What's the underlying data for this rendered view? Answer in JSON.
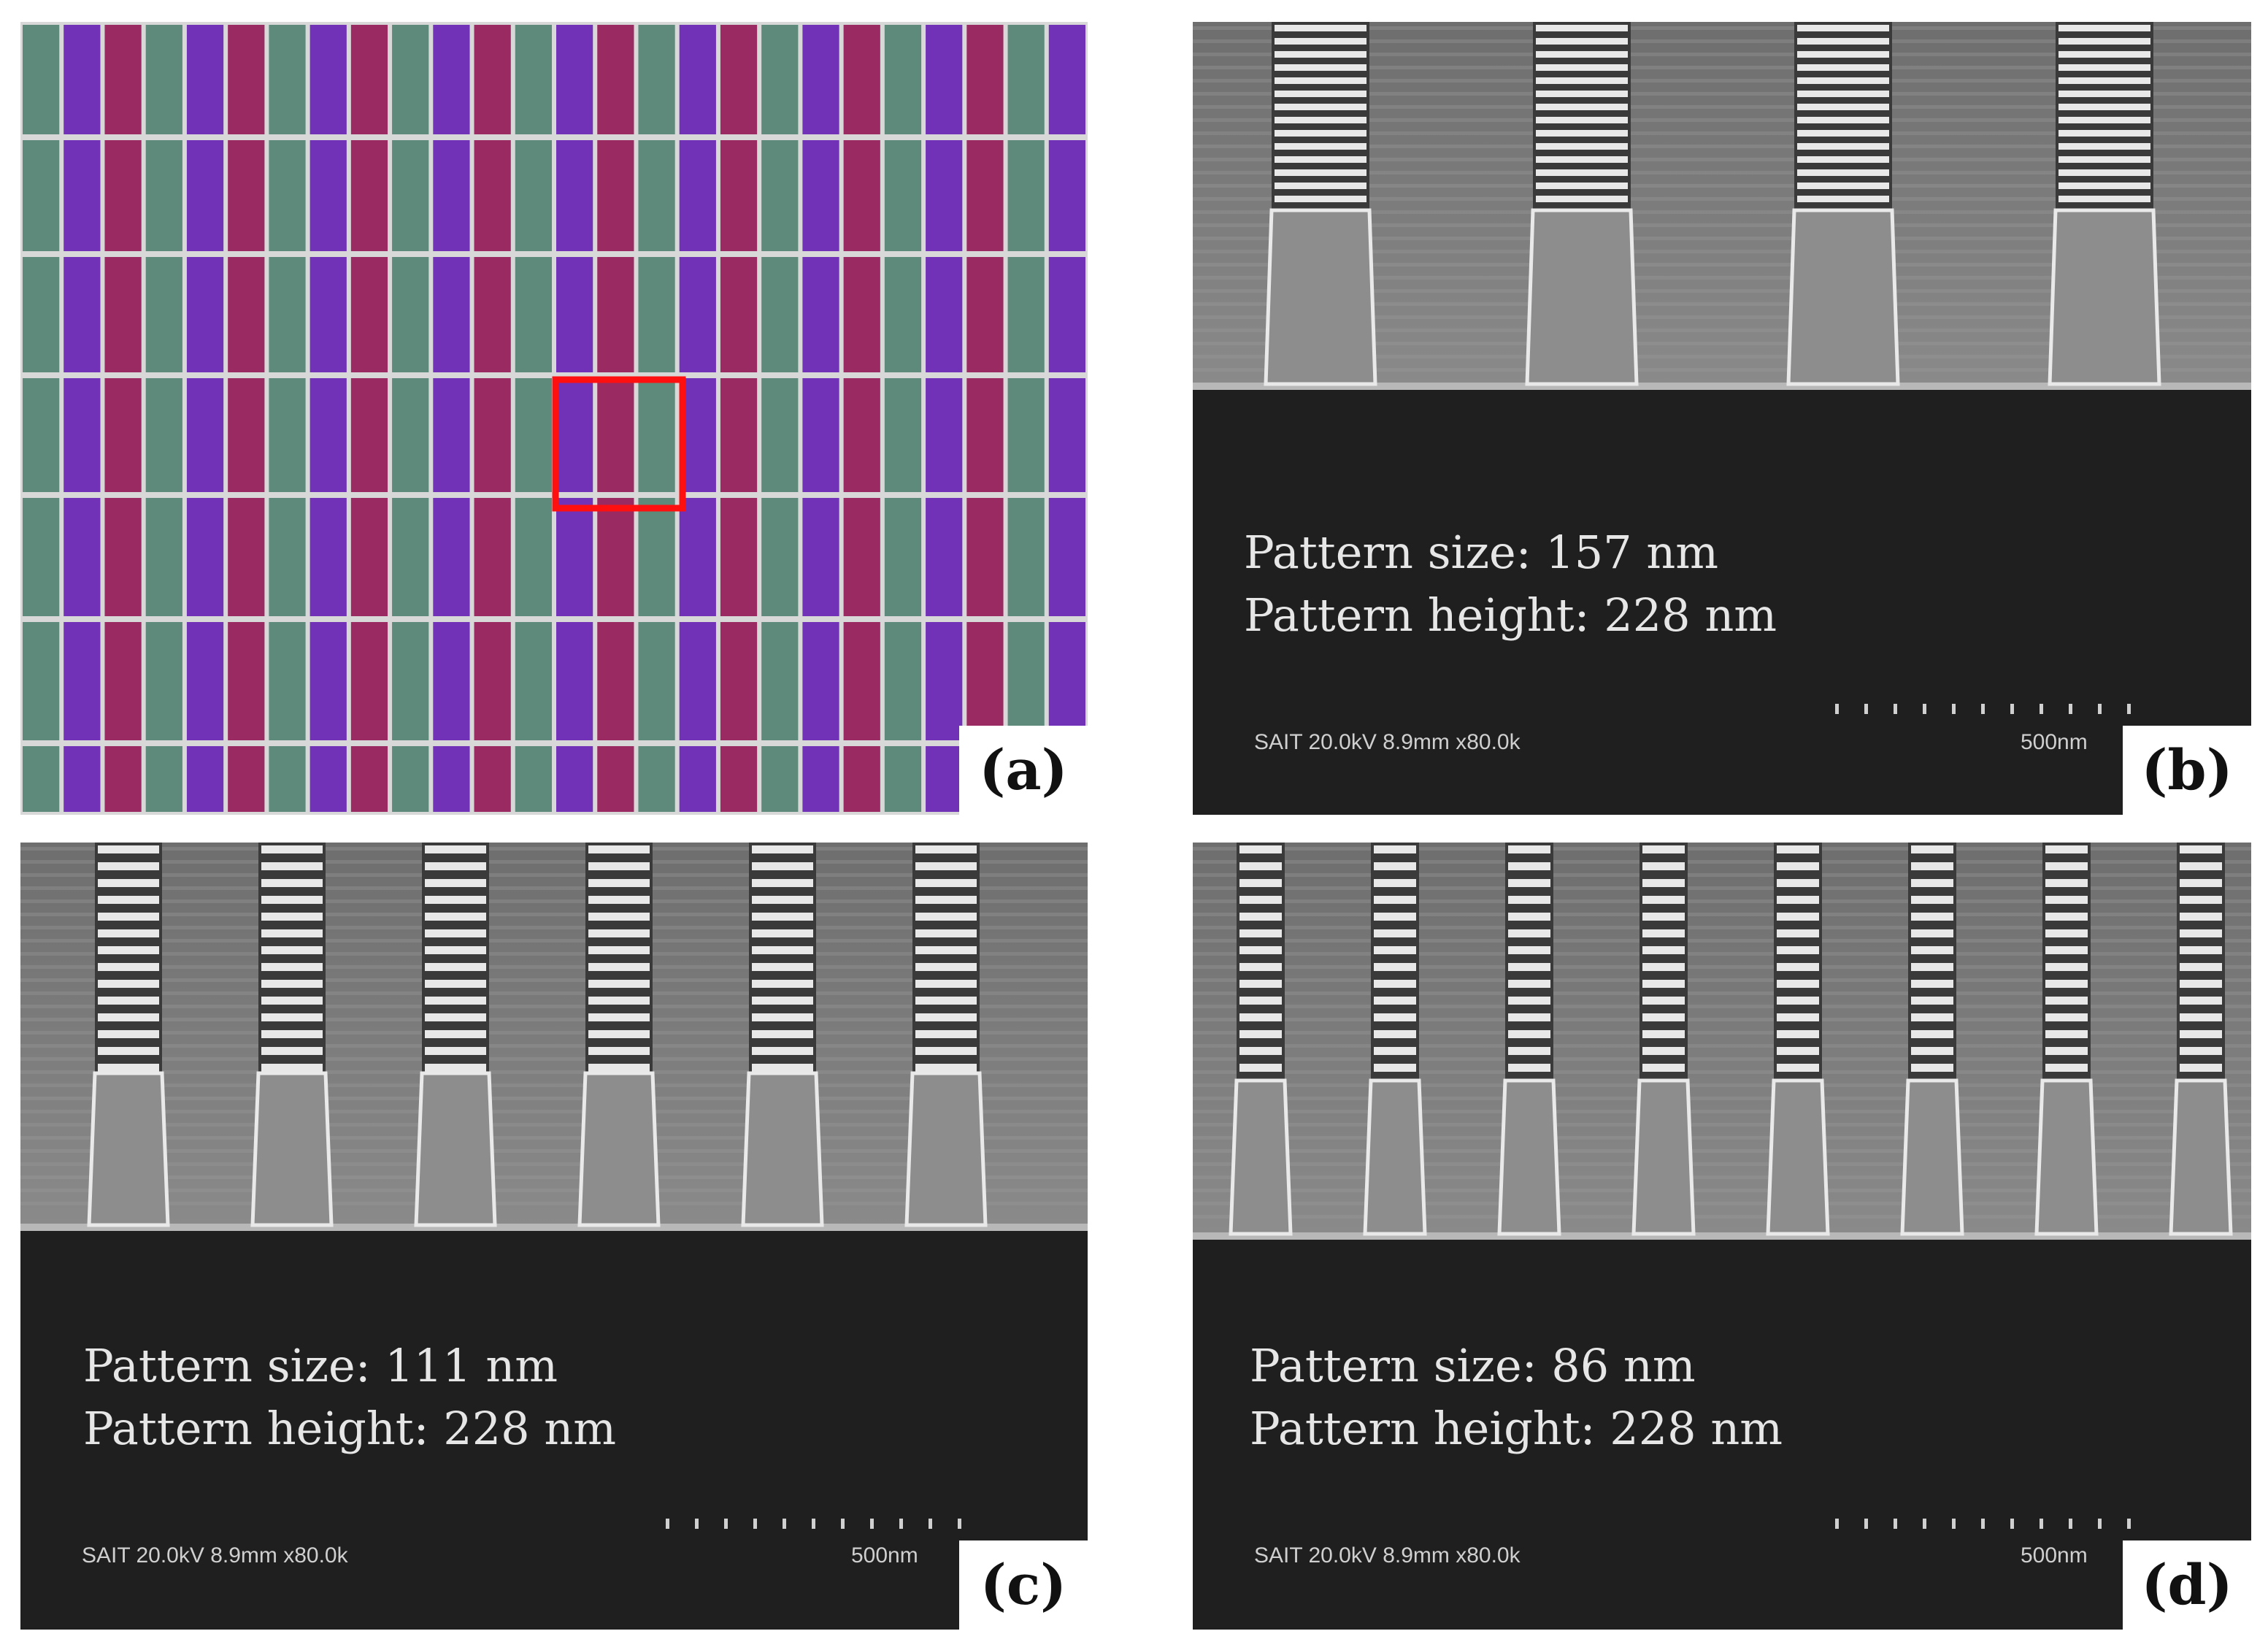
{
  "panels": [
    {
      "id": "a",
      "label": "(a)"
    },
    {
      "id": "b",
      "label": "(b)",
      "size_text": "Pattern size: 157 nm",
      "height_text": "Pattern height: 228 nm",
      "meta": "SAIT 20.0kV 8.9mm x80.0k",
      "scale": "500nm"
    },
    {
      "id": "c",
      "label": "(c)",
      "size_text": "Pattern size: 111 nm",
      "height_text": "Pattern height: 228 nm",
      "meta": "SAIT 20.0kV 8.9mm x80.0k",
      "scale": "500nm"
    },
    {
      "id": "d",
      "label": "(d)",
      "size_text": "Pattern size: 86 nm",
      "height_text": "Pattern height: 228 nm",
      "meta": "SAIT 20.0kV 8.9mm x80.0k",
      "scale": "500nm"
    }
  ],
  "colors": {
    "green": "#5e8a7c",
    "magenta": "#9a2a62",
    "purple": "#7232b8",
    "highlight": "#ff1010"
  }
}
